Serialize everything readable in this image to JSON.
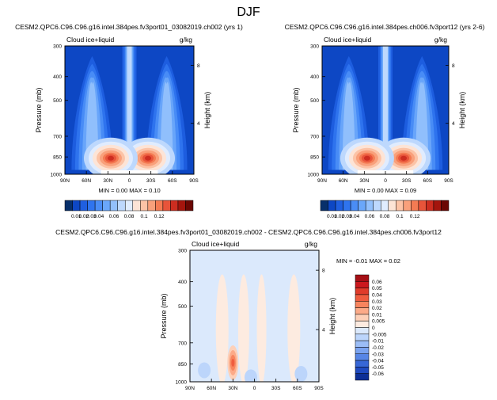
{
  "figure": {
    "title": "DJF"
  },
  "chart_data": [
    {
      "type": "heatmap",
      "title": "CESM2.QPC6.C96.C96.g16.intel.384pes.fv3port01_03082019.ch002 (yrs 1)",
      "field_label": "Cloud ice+liquid",
      "units": "g/kg",
      "ylabel": "Pressure (mb)",
      "right_label": "Height (km)",
      "x_ticks": [
        "90N",
        "60N",
        "30N",
        "0",
        "30S",
        "60S",
        "90S"
      ],
      "y_ticks": [
        300,
        400,
        500,
        700,
        850,
        1000
      ],
      "right_ticks": [
        8,
        4
      ],
      "ylim": [
        1000,
        300
      ],
      "y_scale": "log",
      "stats": "MIN =   0.00   MAX =   0.10",
      "colorbar": {
        "labels": [
          "0.01",
          "0.02",
          "0.03",
          "0.04",
          "0.06",
          "0.08",
          "0.1",
          "0.12"
        ],
        "colors": [
          "#08306b",
          "#0d47c4",
          "#1f5fe0",
          "#2f74ee",
          "#4a8df5",
          "#6aa7fa",
          "#92c0fc",
          "#bdd8fd",
          "#e0ecfe",
          "#fde4d6",
          "#fcc3a6",
          "#f9a07b",
          "#f47b53",
          "#e8543a",
          "#cd2d20",
          "#a4150d",
          "#6b0703"
        ]
      },
      "clouds": [
        {
          "lat": -26,
          "p": 860,
          "peak": 0.1
        },
        {
          "lat": 26,
          "p": 860,
          "peak": 0.1
        }
      ]
    },
    {
      "type": "heatmap",
      "title": "CESM2.QPC6.C96.C96.g16.intel.384pes.ch006.fv3port12 (yrs 2-6)",
      "field_label": "Cloud ice+liquid",
      "units": "g/kg",
      "ylabel": "Pressure (mb)",
      "right_label": "Height (km)",
      "x_ticks": [
        "90N",
        "60N",
        "30N",
        "0",
        "30S",
        "60S",
        "90S"
      ],
      "y_ticks": [
        300,
        400,
        500,
        700,
        850,
        1000
      ],
      "right_ticks": [
        8,
        4
      ],
      "ylim": [
        1000,
        300
      ],
      "y_scale": "log",
      "stats": "MIN =   0.00   MAX =   0.09",
      "colorbar": {
        "labels": [
          "0.01",
          "0.02",
          "0.03",
          "0.04",
          "0.06",
          "0.08",
          "0.1",
          "0.12"
        ],
        "colors": [
          "#08306b",
          "#0d47c4",
          "#1f5fe0",
          "#2f74ee",
          "#4a8df5",
          "#6aa7fa",
          "#92c0fc",
          "#bdd8fd",
          "#e0ecfe",
          "#fde4d6",
          "#fcc3a6",
          "#f9a07b",
          "#f47b53",
          "#e8543a",
          "#cd2d20",
          "#a4150d",
          "#6b0703"
        ]
      },
      "clouds": [
        {
          "lat": -26,
          "p": 860,
          "peak": 0.09
        },
        {
          "lat": 26,
          "p": 860,
          "peak": 0.09
        }
      ]
    },
    {
      "type": "heatmap",
      "title": "CESM2.QPC6.C96.C96.g16.intel.384pes.fv3port01_03082019.ch002 - CESM2.QPC6.C96.C96.g16.intel.384pes.ch006.fv3port12",
      "field_label": "Cloud ice+liquid",
      "units": "g/kg",
      "ylabel": "Pressure (mb)",
      "right_label": "Height (km)",
      "x_ticks": [
        "90N",
        "60N",
        "30N",
        "0",
        "30S",
        "60S",
        "90S"
      ],
      "y_ticks": [
        300,
        400,
        500,
        700,
        850,
        1000
      ],
      "right_ticks": [
        8,
        4
      ],
      "ylim": [
        1000,
        300
      ],
      "y_scale": "log",
      "stats": "MIN =  -0.01   MAX =   0.02",
      "colorbar": {
        "labels": [
          "0.06",
          "0.05",
          "0.04",
          "0.03",
          "0.02",
          "0.01",
          "0.005",
          "0",
          "-0.005",
          "-0.01",
          "-0.02",
          "-0.03",
          "-0.04",
          "-0.05",
          "-0.06"
        ],
        "colors": [
          "#a50f15",
          "#cb181d",
          "#e03b2a",
          "#ef5c3f",
          "#f7845e",
          "#fcaa88",
          "#fdd0b8",
          "#fdebe0",
          "#dbe9fc",
          "#bcd5fb",
          "#9bbdf6",
          "#7aa3f0",
          "#5786e6",
          "#3767d6",
          "#1f4ac0",
          "#0d2f96"
        ]
      },
      "diff_features": [
        {
          "lat": 30,
          "p": 840,
          "value": 0.02
        }
      ]
    }
  ]
}
